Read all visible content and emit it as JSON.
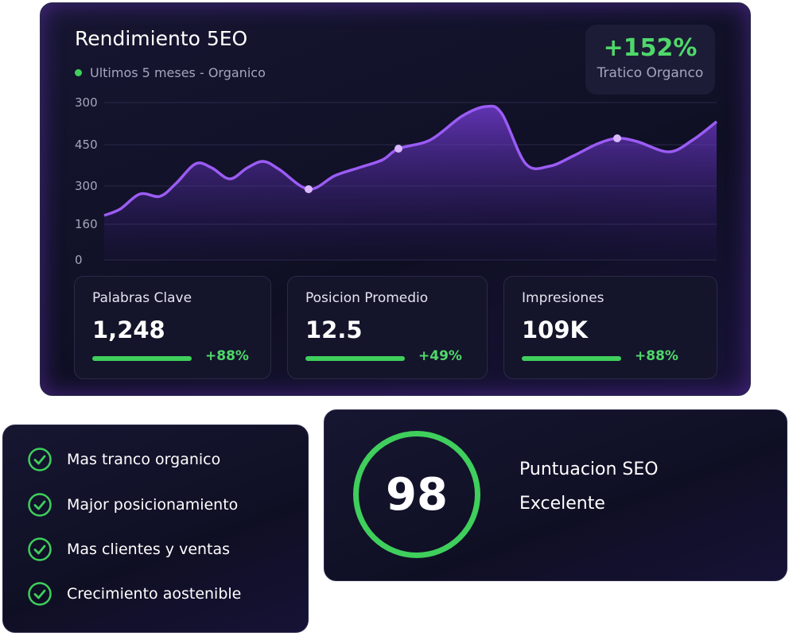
{
  "header": {
    "title": "Rendimiento 5EO",
    "subtitle": "Ultimos 5 meses - Organico"
  },
  "badge": {
    "value": "+152%",
    "label": "Tratico Organco"
  },
  "chart": {
    "y_axis_labels": [
      "300",
      "450",
      "300",
      "160",
      "0"
    ]
  },
  "stats": [
    {
      "label": "Palabras Clave",
      "value": "1,248",
      "change": "+88%"
    },
    {
      "label": "Posicion Promedio",
      "value": "12.5",
      "change": "+49%"
    },
    {
      "label": "Impresiones",
      "value": "109K",
      "change": "+88%"
    }
  ],
  "benefits": [
    "Mas tranco organico",
    "Major posicionamiento",
    "Mas clientes y ventas",
    "Crecimiento aostenible"
  ],
  "score": {
    "value": "98",
    "label": "Puntuacion SEO",
    "rating": "Excelente"
  }
}
